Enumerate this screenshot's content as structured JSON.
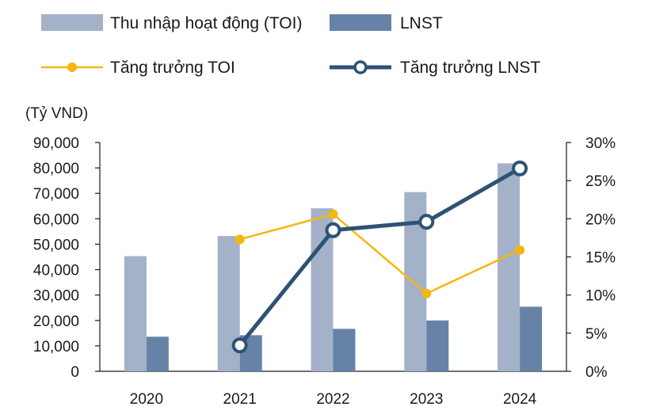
{
  "chart_data": {
    "type": "bar",
    "categories": [
      "2020",
      "2021",
      "2022",
      "2023",
      "2024"
    ],
    "series": [
      {
        "name": "Thu nhập hoạt động (TOI)",
        "kind": "bar",
        "axis": "left",
        "color": "#a3b1c9",
        "values": [
          45300,
          53200,
          64100,
          70500,
          81800
        ]
      },
      {
        "name": "LNST",
        "kind": "bar",
        "axis": "left",
        "color": "#6683a7",
        "values": [
          13600,
          14200,
          16700,
          20000,
          25400
        ]
      },
      {
        "name": "Tăng trưởng TOI",
        "kind": "line",
        "axis": "right",
        "color": "#f5b70f",
        "marker": "filled",
        "values": [
          null,
          17.3,
          20.6,
          10.2,
          15.9
        ]
      },
      {
        "name": "Tăng trưởng LNST",
        "kind": "line",
        "axis": "right",
        "color": "#2d5274",
        "marker": "open",
        "values": [
          null,
          3.4,
          18.5,
          19.6,
          26.6
        ]
      }
    ],
    "y_left": {
      "unit": "(Tỷ VND)",
      "ylim": [
        0,
        90000
      ],
      "tick_values": [
        0,
        10000,
        20000,
        30000,
        40000,
        50000,
        60000,
        70000,
        80000,
        90000
      ],
      "tick_labels": [
        "0",
        "10,000",
        "20,000",
        "30,000",
        "40,000",
        "50,000",
        "60,000",
        "70,000",
        "80,000",
        "90,000"
      ]
    },
    "y_right": {
      "ylim": [
        0,
        30
      ],
      "tick_values": [
        0,
        5,
        10,
        15,
        20,
        25,
        30
      ],
      "tick_labels": [
        "0%",
        "5%",
        "10%",
        "15%",
        "20%",
        "25%",
        "30%"
      ]
    },
    "grid": false,
    "legend_position": "top"
  }
}
